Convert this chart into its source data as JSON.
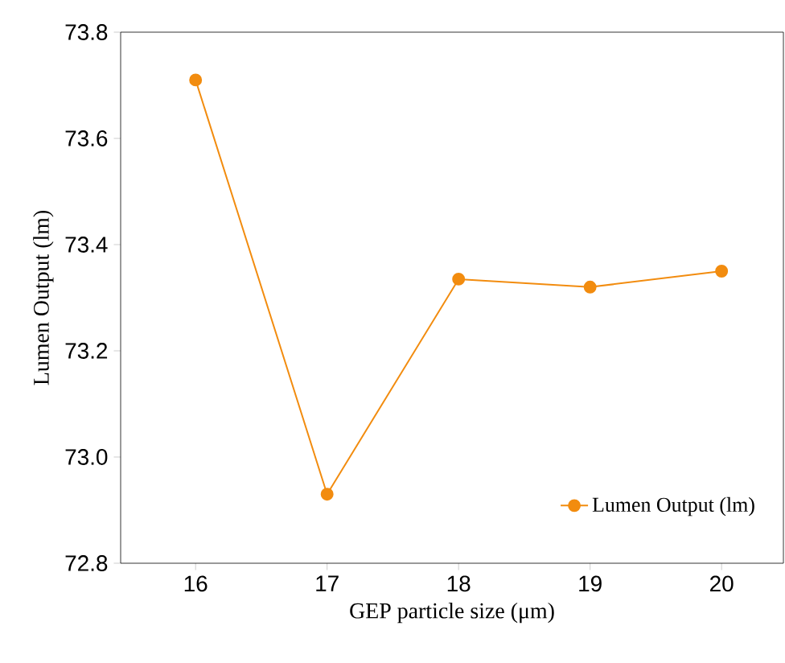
{
  "chart_data": {
    "type": "line",
    "xlabel": "GEP particle size (μm)",
    "ylabel": "Lumen Output (lm)",
    "x": [
      16,
      17,
      18,
      19,
      20
    ],
    "series": [
      {
        "name": "Lumen Output (lm)",
        "color": "#f28c0f",
        "values": [
          73.71,
          72.93,
          73.335,
          73.32,
          73.35
        ]
      }
    ],
    "xlim": [
      15.43,
      20.47
    ],
    "ylim": [
      72.8,
      73.8
    ],
    "xticks": [
      16,
      17,
      18,
      19,
      20
    ],
    "yticks": [
      {
        "value": 72.8,
        "label": "72.8"
      },
      {
        "value": 73.0,
        "label": "73.0"
      },
      {
        "value": 73.2,
        "label": "73.2"
      },
      {
        "value": 73.4,
        "label": "73.4"
      },
      {
        "value": 73.6,
        "label": "73.6"
      },
      {
        "value": 73.8,
        "label": "73.8"
      }
    ],
    "legend": "bottom right",
    "marker": "circle",
    "line_style": "solid",
    "grid": false
  }
}
